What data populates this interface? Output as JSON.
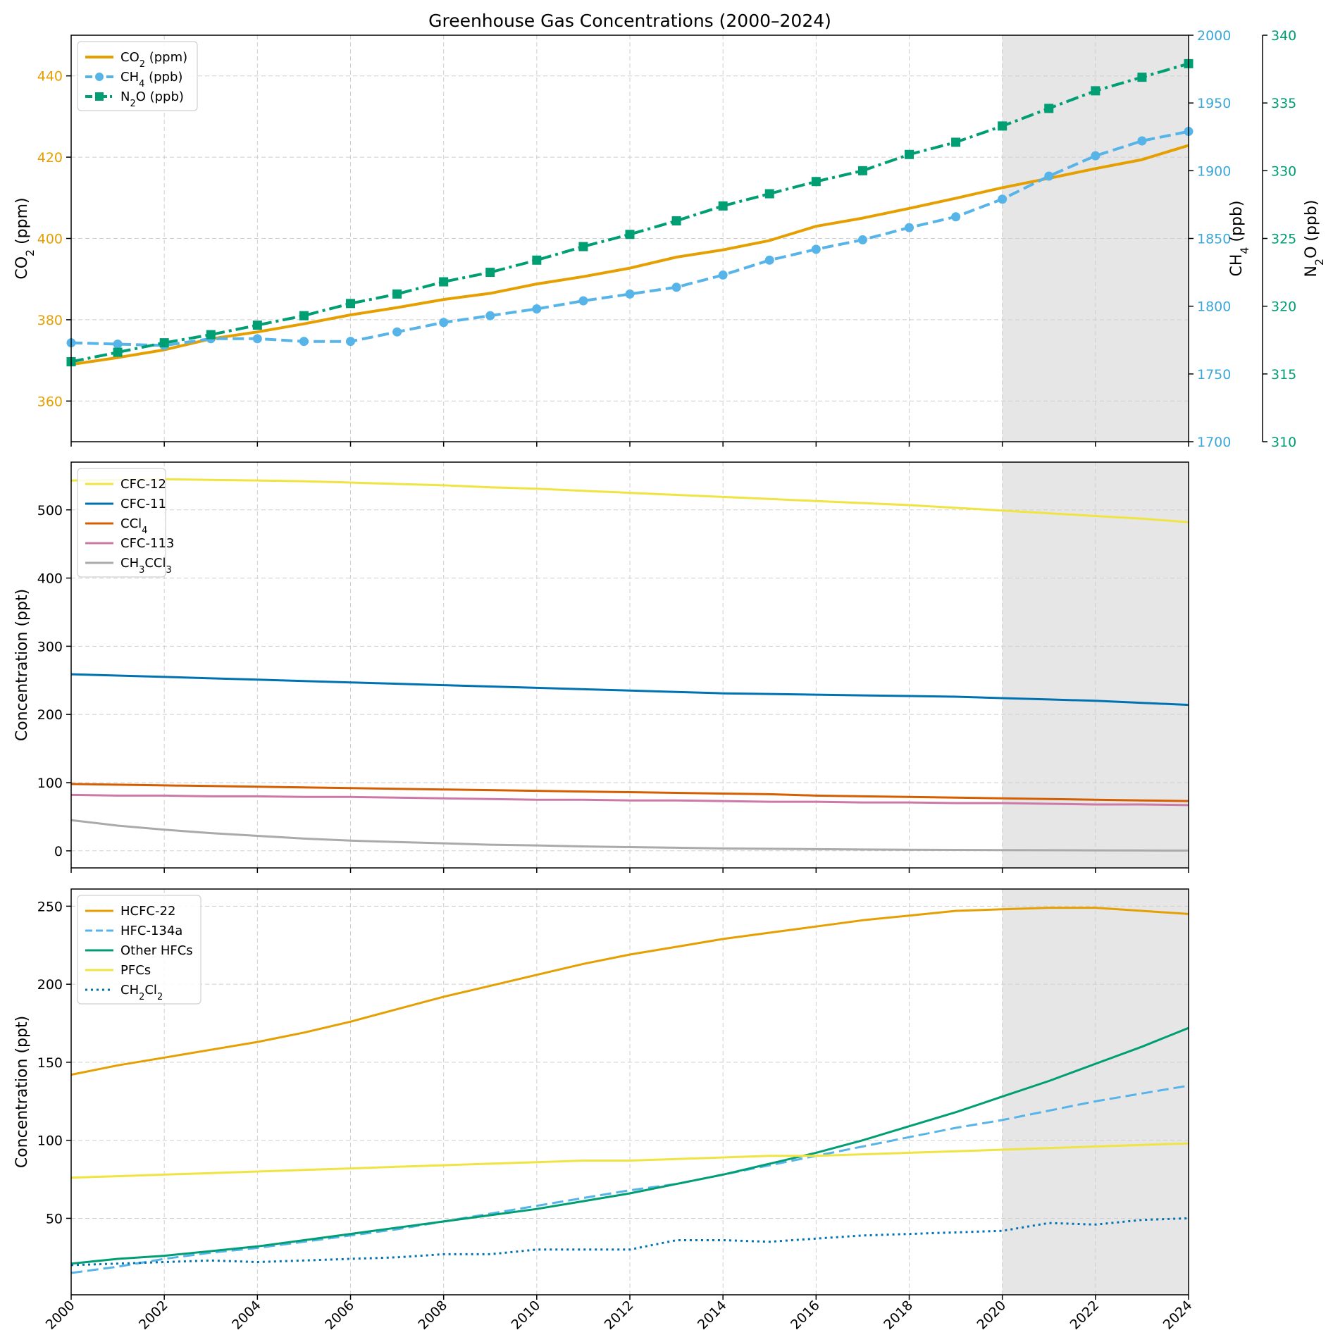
{
  "chart_data": [
    {
      "panel": "top",
      "type": "line",
      "title": "Greenhouse Gas Concentrations (2000–2024)",
      "x": [
        2000,
        2001,
        2002,
        2003,
        2004,
        2005,
        2006,
        2007,
        2008,
        2009,
        2010,
        2011,
        2012,
        2013,
        2014,
        2015,
        2016,
        2017,
        2018,
        2019,
        2020,
        2021,
        2022,
        2023,
        2024
      ],
      "xlim": [
        2000,
        2024
      ],
      "xticks": [
        "2000",
        "2002",
        "2004",
        "2006",
        "2008",
        "2010",
        "2012",
        "2014",
        "2016",
        "2018",
        "2020",
        "2022",
        "2024"
      ],
      "shaded_region": [
        2020,
        2024
      ],
      "grid": true,
      "legend_position": "top-left",
      "axes": [
        {
          "id": "co2",
          "side": "left",
          "label_parts": [
            "CO",
            "2",
            " (ppm)"
          ],
          "color": "#e69f00",
          "ylim": [
            350,
            450
          ],
          "ticks": [
            360,
            380,
            400,
            420,
            440
          ]
        },
        {
          "id": "ch4",
          "side": "right",
          "label_parts": [
            "CH",
            "4",
            " (ppb)"
          ],
          "color": "#3ba7d9",
          "ylim": [
            1700,
            2000
          ],
          "ticks": [
            1700,
            1750,
            1800,
            1850,
            1900,
            1950,
            2000
          ]
        },
        {
          "id": "n2o",
          "side": "right-outer",
          "label_parts": [
            "N",
            "2",
            "O (ppb)"
          ],
          "color": "#009e73",
          "ylim": [
            310,
            340
          ],
          "ticks": [
            310,
            315,
            320,
            325,
            330,
            335,
            340
          ]
        }
      ],
      "series": [
        {
          "name_parts": [
            "CO",
            "2",
            " (ppm)"
          ],
          "axis": "co2",
          "color": "#e69f00",
          "dash": "solid",
          "marker": "none",
          "values": [
            369.0,
            370.7,
            372.6,
            375.3,
            377.0,
            379.0,
            381.2,
            383.0,
            385.0,
            386.5,
            388.8,
            390.6,
            392.7,
            395.4,
            397.2,
            399.5,
            403.0,
            405.0,
            407.4,
            409.9,
            412.5,
            414.8,
            417.2,
            419.4,
            422.9
          ]
        },
        {
          "name_parts": [
            "CH",
            "4",
            " (ppb)"
          ],
          "axis": "ch4",
          "color": "#56b4e9",
          "dash": "dashed",
          "marker": "circle",
          "values": [
            1773,
            1772,
            1771,
            1776,
            1776,
            1774,
            1774,
            1781,
            1788,
            1793,
            1798,
            1804,
            1809,
            1814,
            1823,
            1834,
            1842,
            1849,
            1858,
            1866,
            1879,
            1896,
            1911,
            1922,
            1929
          ]
        },
        {
          "name_parts": [
            "N",
            "2",
            "O (ppb)"
          ],
          "axis": "n2o",
          "color": "#009e73",
          "dash": "dashdot",
          "marker": "square",
          "values": [
            315.9,
            316.6,
            317.3,
            317.9,
            318.6,
            319.3,
            320.2,
            320.9,
            321.8,
            322.5,
            323.4,
            324.4,
            325.3,
            326.3,
            327.4,
            328.3,
            329.2,
            330.0,
            331.2,
            332.1,
            333.3,
            334.6,
            335.9,
            336.9,
            337.9
          ]
        }
      ]
    },
    {
      "panel": "middle",
      "type": "line",
      "x": [
        2000,
        2001,
        2002,
        2003,
        2004,
        2005,
        2006,
        2007,
        2008,
        2009,
        2010,
        2011,
        2012,
        2013,
        2014,
        2015,
        2016,
        2017,
        2018,
        2019,
        2020,
        2021,
        2022,
        2023,
        2024
      ],
      "xlim": [
        2000,
        2024
      ],
      "ylabel": "Concentration (ppt)",
      "ylim": [
        -25,
        570
      ],
      "yticks": [
        0,
        100,
        200,
        300,
        400,
        500
      ],
      "shaded_region": [
        2020,
        2024
      ],
      "grid": true,
      "legend_position": "top-left",
      "series": [
        {
          "name_parts": [
            "CFC-12"
          ],
          "color": "#f0e442",
          "dash": "solid",
          "values": [
            543,
            544,
            545,
            544,
            543,
            542,
            540,
            538,
            536,
            533,
            531,
            528,
            525,
            522,
            519,
            516,
            513,
            510,
            507,
            503,
            499,
            495,
            491,
            487,
            482
          ]
        },
        {
          "name_parts": [
            "CFC-11"
          ],
          "color": "#0072b2",
          "dash": "solid",
          "values": [
            259,
            257,
            255,
            253,
            251,
            249,
            247,
            245,
            243,
            241,
            239,
            237,
            235,
            233,
            231,
            230,
            229,
            228,
            227,
            226,
            224,
            222,
            220,
            217,
            214
          ]
        },
        {
          "name_parts": [
            "CCl",
            "4"
          ],
          "color": "#d55e00",
          "dash": "solid",
          "values": [
            98,
            97,
            96,
            95,
            94,
            93,
            92,
            91,
            90,
            89,
            88,
            87,
            86,
            85,
            84,
            83,
            81,
            80,
            79,
            78,
            77,
            76,
            75,
            74,
            73
          ]
        },
        {
          "name_parts": [
            "CFC-113"
          ],
          "color": "#cc79a7",
          "dash": "solid",
          "values": [
            82,
            81,
            81,
            80,
            80,
            79,
            79,
            78,
            77,
            76,
            75,
            75,
            74,
            74,
            73,
            72,
            72,
            71,
            71,
            70,
            70,
            69,
            68,
            68,
            67
          ]
        },
        {
          "name_parts": [
            "CH",
            "3",
            "CCl",
            "3"
          ],
          "color": "#aaaaaa",
          "dash": "solid",
          "values": [
            45,
            37,
            31,
            26,
            22,
            18,
            15,
            13,
            11,
            9,
            8,
            6.5,
            5.5,
            4.5,
            3.5,
            3,
            2.5,
            2,
            1.6,
            1.3,
            1.1,
            0.9,
            0.7,
            0.5,
            0.4
          ]
        }
      ]
    },
    {
      "panel": "bottom",
      "type": "line",
      "x": [
        2000,
        2001,
        2002,
        2003,
        2004,
        2005,
        2006,
        2007,
        2008,
        2009,
        2010,
        2011,
        2012,
        2013,
        2014,
        2015,
        2016,
        2017,
        2018,
        2019,
        2020,
        2021,
        2022,
        2023,
        2024
      ],
      "xlim": [
        2000,
        2024
      ],
      "ylabel": "Concentration (ppt)",
      "ylim": [
        1,
        261
      ],
      "yticks": [
        50,
        100,
        150,
        200,
        250
      ],
      "shaded_region": [
        2020,
        2024
      ],
      "grid": true,
      "legend_position": "top-left",
      "series": [
        {
          "name_parts": [
            "HCFC-22"
          ],
          "color": "#e69f00",
          "dash": "solid",
          "values": [
            142,
            148,
            153,
            158,
            163,
            169,
            176,
            184,
            192,
            199,
            206,
            213,
            219,
            224,
            229,
            233,
            237,
            241,
            244,
            247,
            248,
            249,
            249,
            247,
            245
          ]
        },
        {
          "name_parts": [
            "HFC-134a"
          ],
          "color": "#56b4e9",
          "dash": "dashed",
          "values": [
            15,
            19,
            24,
            28,
            31,
            35,
            39,
            43,
            48,
            53,
            58,
            63,
            68,
            72,
            78,
            84,
            90,
            96,
            102,
            108,
            113,
            119,
            125,
            130,
            135
          ]
        },
        {
          "name_parts": [
            "Other HFCs"
          ],
          "color": "#009e73",
          "dash": "solid",
          "values": [
            21,
            24,
            26,
            29,
            32,
            36,
            40,
            44,
            48,
            52,
            56,
            61,
            66,
            72,
            78,
            85,
            92,
            100,
            109,
            118,
            128,
            138,
            149,
            160,
            172
          ]
        },
        {
          "name_parts": [
            "PFCs"
          ],
          "color": "#f0e442",
          "dash": "solid",
          "values": [
            76,
            77,
            78,
            79,
            80,
            81,
            82,
            83,
            84,
            85,
            86,
            87,
            87,
            88,
            89,
            90,
            90,
            91,
            92,
            93,
            94,
            95,
            96,
            97,
            98
          ]
        },
        {
          "name_parts": [
            "CH",
            "2",
            "Cl",
            "2"
          ],
          "color": "#0072b2",
          "dash": "dotted",
          "values": [
            20,
            21,
            22,
            23,
            22,
            23,
            24,
            25,
            27,
            27,
            30,
            30,
            30,
            36,
            36,
            35,
            37,
            39,
            40,
            41,
            42,
            47,
            46,
            49,
            50
          ]
        }
      ]
    }
  ]
}
